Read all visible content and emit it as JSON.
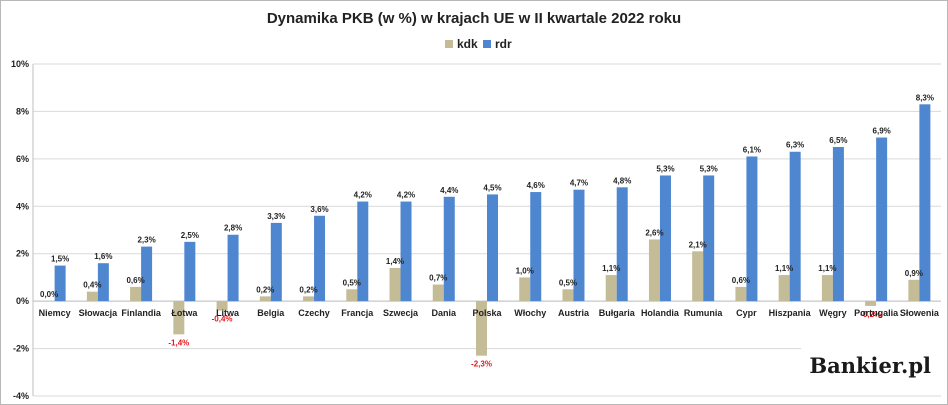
{
  "chart_data": {
    "type": "bar",
    "title": "Dynamika PKB (w %) w krajach UE w II kwartale 2022 roku",
    "categories": [
      "Niemcy",
      "Słowacja",
      "Finlandia",
      "Łotwa",
      "Litwa",
      "Belgia",
      "Czechy",
      "Francja",
      "Szwecja",
      "Dania",
      "Polska",
      "Włochy",
      "Austria",
      "Bułgaria",
      "Holandia",
      "Rumunia",
      "Cypr",
      "Hiszpania",
      "Węgry",
      "Portugalia",
      "Słowenia"
    ],
    "series": [
      {
        "name": "kdk",
        "color": "#c4bb97",
        "values": [
          0.0,
          0.4,
          0.6,
          -1.4,
          -0.4,
          0.2,
          0.2,
          0.5,
          1.4,
          0.7,
          -2.3,
          1.0,
          0.5,
          1.1,
          2.6,
          2.1,
          0.6,
          1.1,
          1.1,
          -0.2,
          0.9
        ],
        "labels": [
          "0,0%",
          "0,4%",
          "0,6%",
          "-1,4%",
          "-0,4%",
          "0,2%",
          "0,2%",
          "0,5%",
          "1,4%",
          "0,7%",
          "-2,3%",
          "1,0%",
          "0,5%",
          "1,1%",
          "2,6%",
          "2,1%",
          "0,6%",
          "1,1%",
          "1,1%",
          "-0,2%",
          "0,9%"
        ]
      },
      {
        "name": "rdr",
        "color": "#4f86d0",
        "values": [
          1.5,
          1.6,
          2.3,
          2.5,
          2.8,
          3.3,
          3.6,
          4.2,
          4.2,
          4.4,
          4.5,
          4.6,
          4.7,
          4.8,
          5.3,
          5.3,
          6.1,
          6.3,
          6.5,
          6.9,
          8.3
        ],
        "labels": [
          "1,5%",
          "1,6%",
          "2,3%",
          "2,5%",
          "2,8%",
          "3,3%",
          "3,6%",
          "4,2%",
          "4,2%",
          "4,4%",
          "4,5%",
          "4,6%",
          "4,7%",
          "4,8%",
          "5,3%",
          "5,3%",
          "6,1%",
          "6,3%",
          "6,5%",
          "6,9%",
          "8,3%"
        ]
      }
    ],
    "ylim": [
      -4,
      10
    ],
    "yticks": [
      -4,
      -2,
      0,
      2,
      4,
      6,
      8,
      10
    ],
    "ytick_labels": [
      "-4%",
      "-2%",
      "0%",
      "2%",
      "4%",
      "6%",
      "8%",
      "10%"
    ],
    "legend_position": "top-center",
    "grid": true,
    "negative_label_color": "#e8141b"
  },
  "watermark": "Bankier.pl"
}
